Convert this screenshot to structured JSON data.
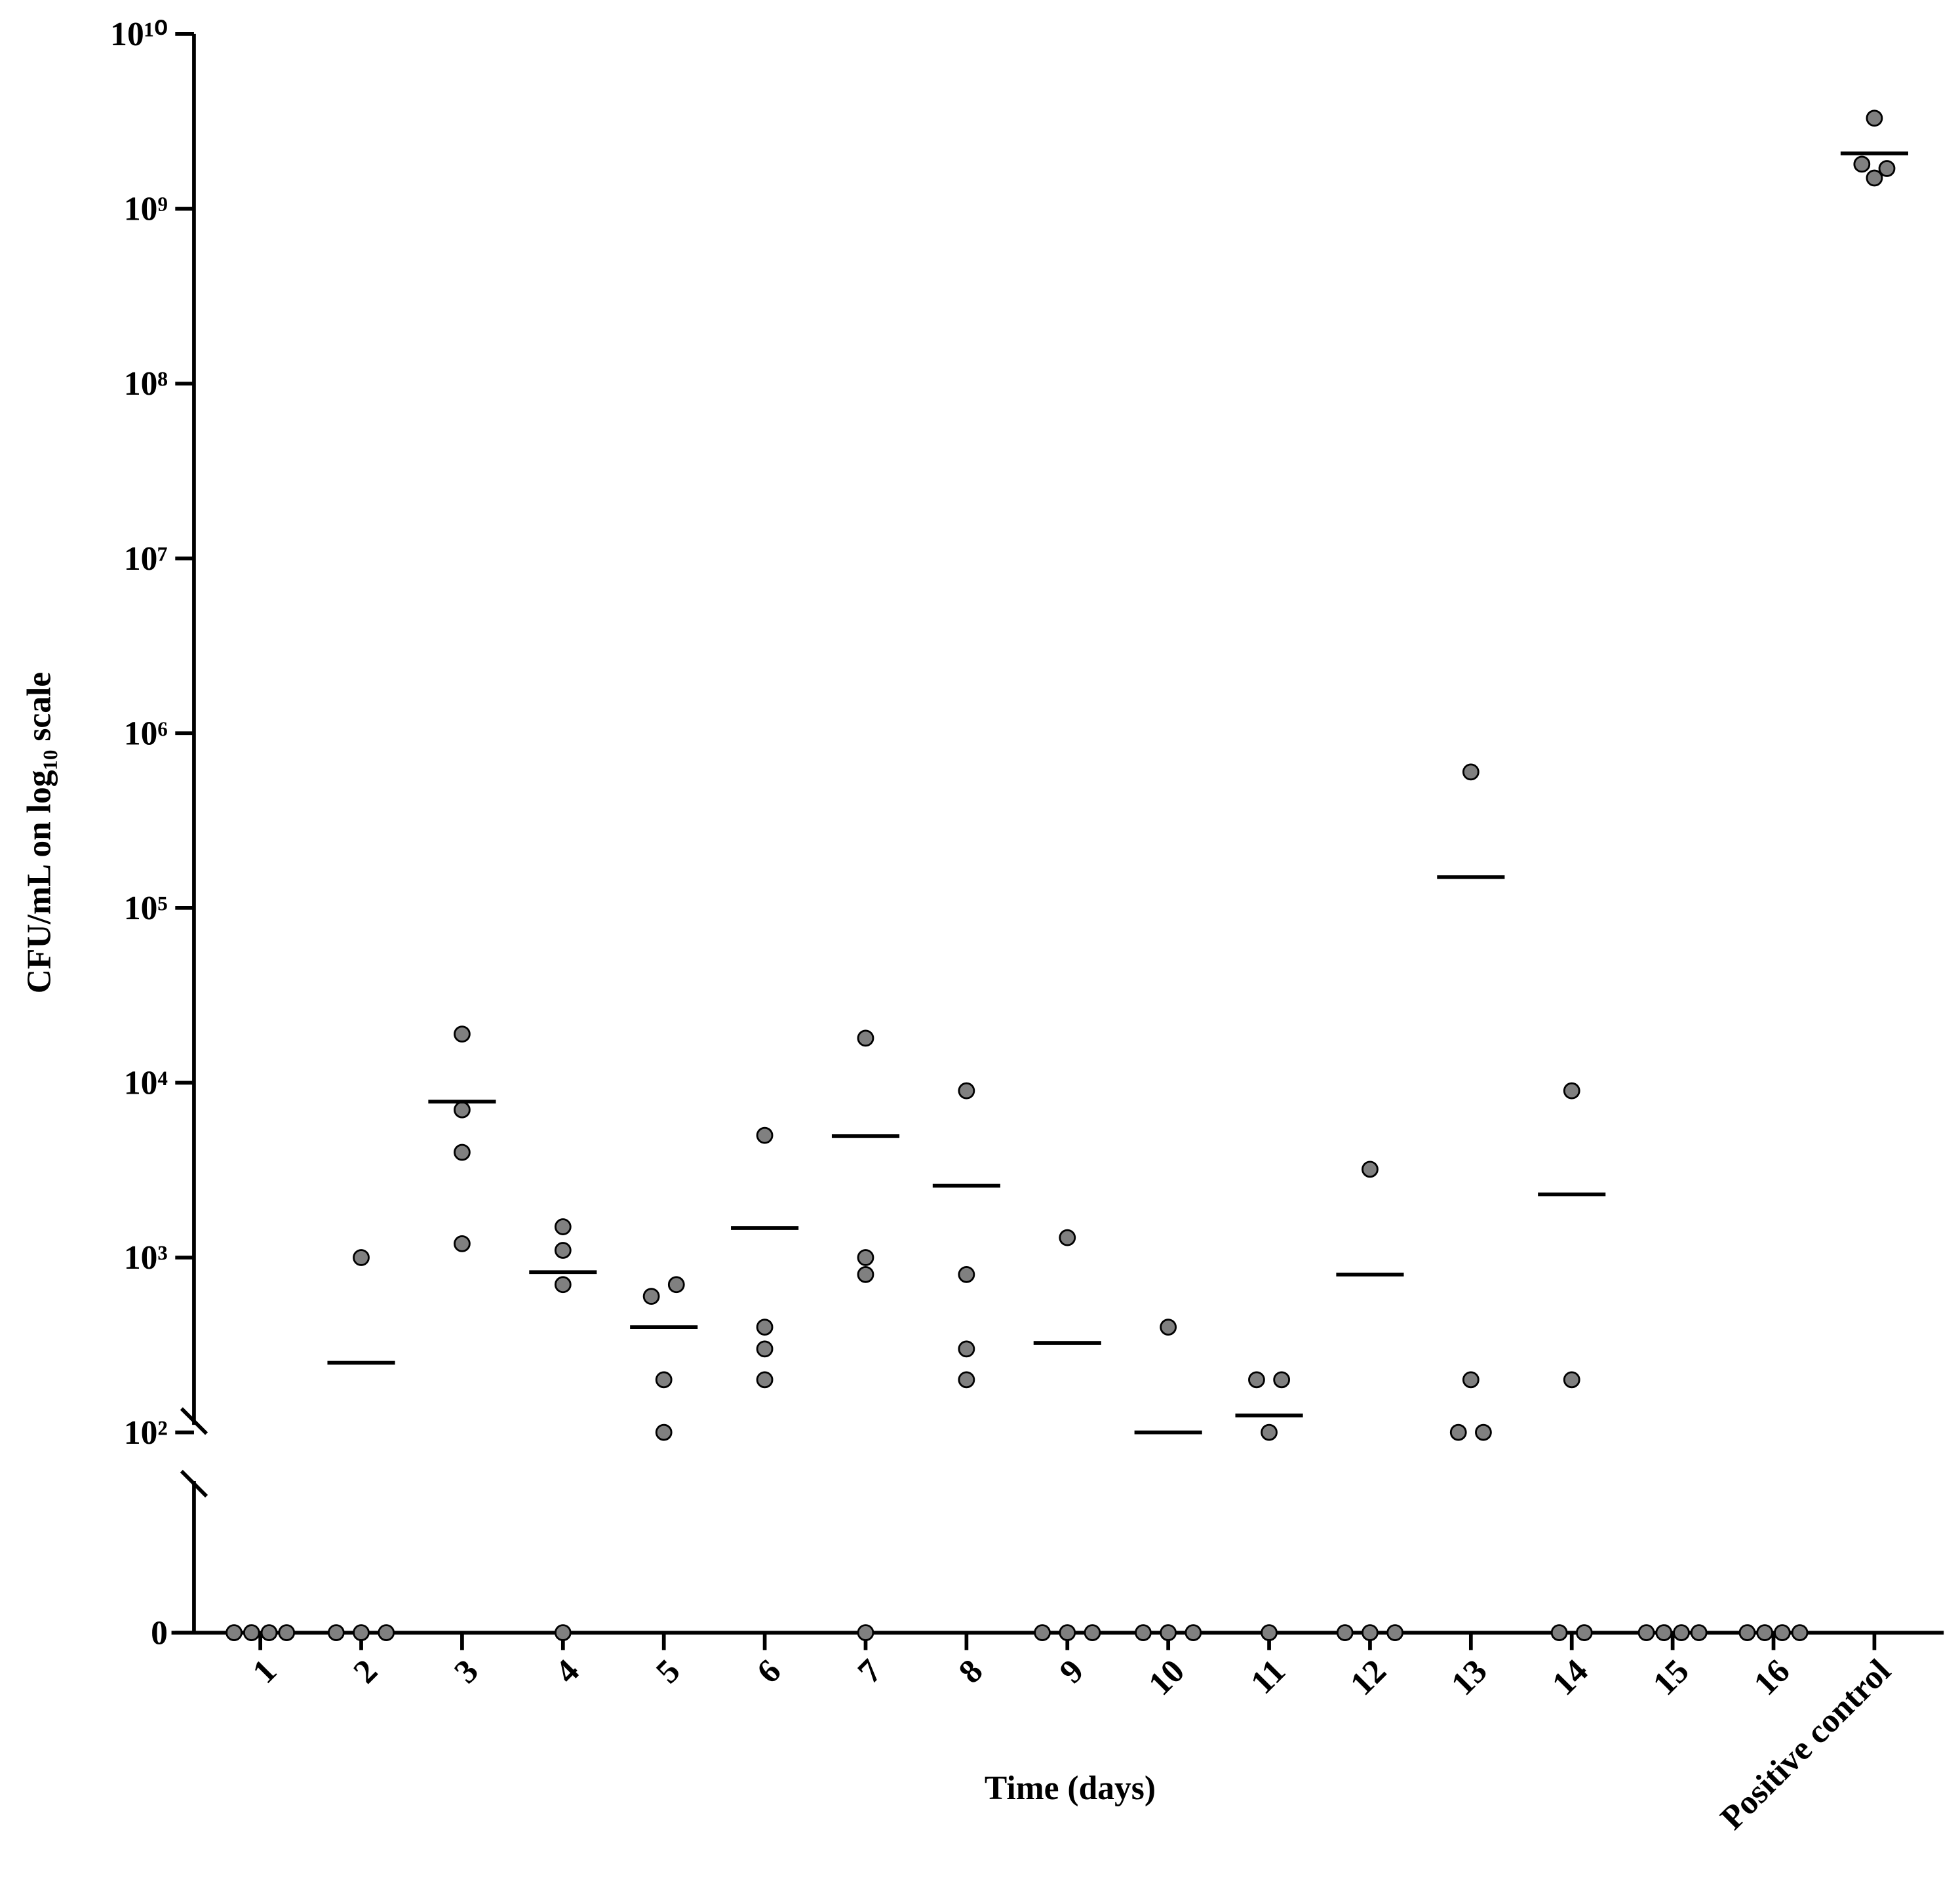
{
  "chart_data": {
    "type": "dot",
    "xlabel": "Time (days)",
    "ylabel": "CFU/mL on log₁₀ scale",
    "categories": [
      "1",
      "2",
      "3",
      "4",
      "5",
      "6",
      "7",
      "8",
      "9",
      "10",
      "11",
      "12",
      "13",
      "14",
      "15",
      "16",
      "Positive control"
    ],
    "values": [
      [
        0,
        0,
        0,
        0
      ],
      [
        1000,
        0,
        0,
        0
      ],
      [
        19000,
        7000,
        4000,
        1200
      ],
      [
        1500,
        1100,
        700,
        0
      ],
      [
        600,
        700,
        200,
        100
      ],
      [
        5000,
        400,
        300,
        200
      ],
      [
        18000,
        1000,
        800,
        0
      ],
      [
        9000,
        800,
        300,
        200
      ],
      [
        1300,
        0,
        0,
        0
      ],
      [
        400,
        0,
        0,
        0
      ],
      [
        200,
        200,
        100,
        0
      ],
      [
        3200,
        0,
        0,
        0
      ],
      [
        600000,
        200,
        100,
        100
      ],
      [
        9000,
        200,
        0,
        0
      ],
      [
        0,
        0,
        0,
        0
      ],
      [
        0,
        0,
        0,
        0
      ],
      [
        3300000000,
        1800000000,
        1500000000,
        1700000000
      ]
    ],
    "means": [
      null,
      250,
      7800,
      825,
      400,
      1475,
      4950,
      2575,
      325,
      100,
      125,
      800,
      150100,
      2300,
      null,
      null,
      2075000000
    ],
    "color": "#808080",
    "log_scale": true,
    "axis_break": true,
    "ylim": [
      100,
      10000000000
    ],
    "yticks": [
      0,
      {
        "value": 100,
        "label": "10²"
      },
      {
        "value": 100000,
        "label": "10⁵"
      },
      {
        "value": 1000,
        "label": "10³"
      },
      {
        "value": 10000,
        "label": "10⁴"
      },
      {
        "value": 1000000,
        "label": "10⁶"
      },
      {
        "value": 10000000,
        "label": "10⁷"
      },
      {
        "value": 100000000,
        "label": "10⁸"
      },
      {
        "value": 1000000000,
        "label": "10⁹"
      },
      {
        "value": 10000000000,
        "label": "10¹⁰"
      }
    ]
  }
}
